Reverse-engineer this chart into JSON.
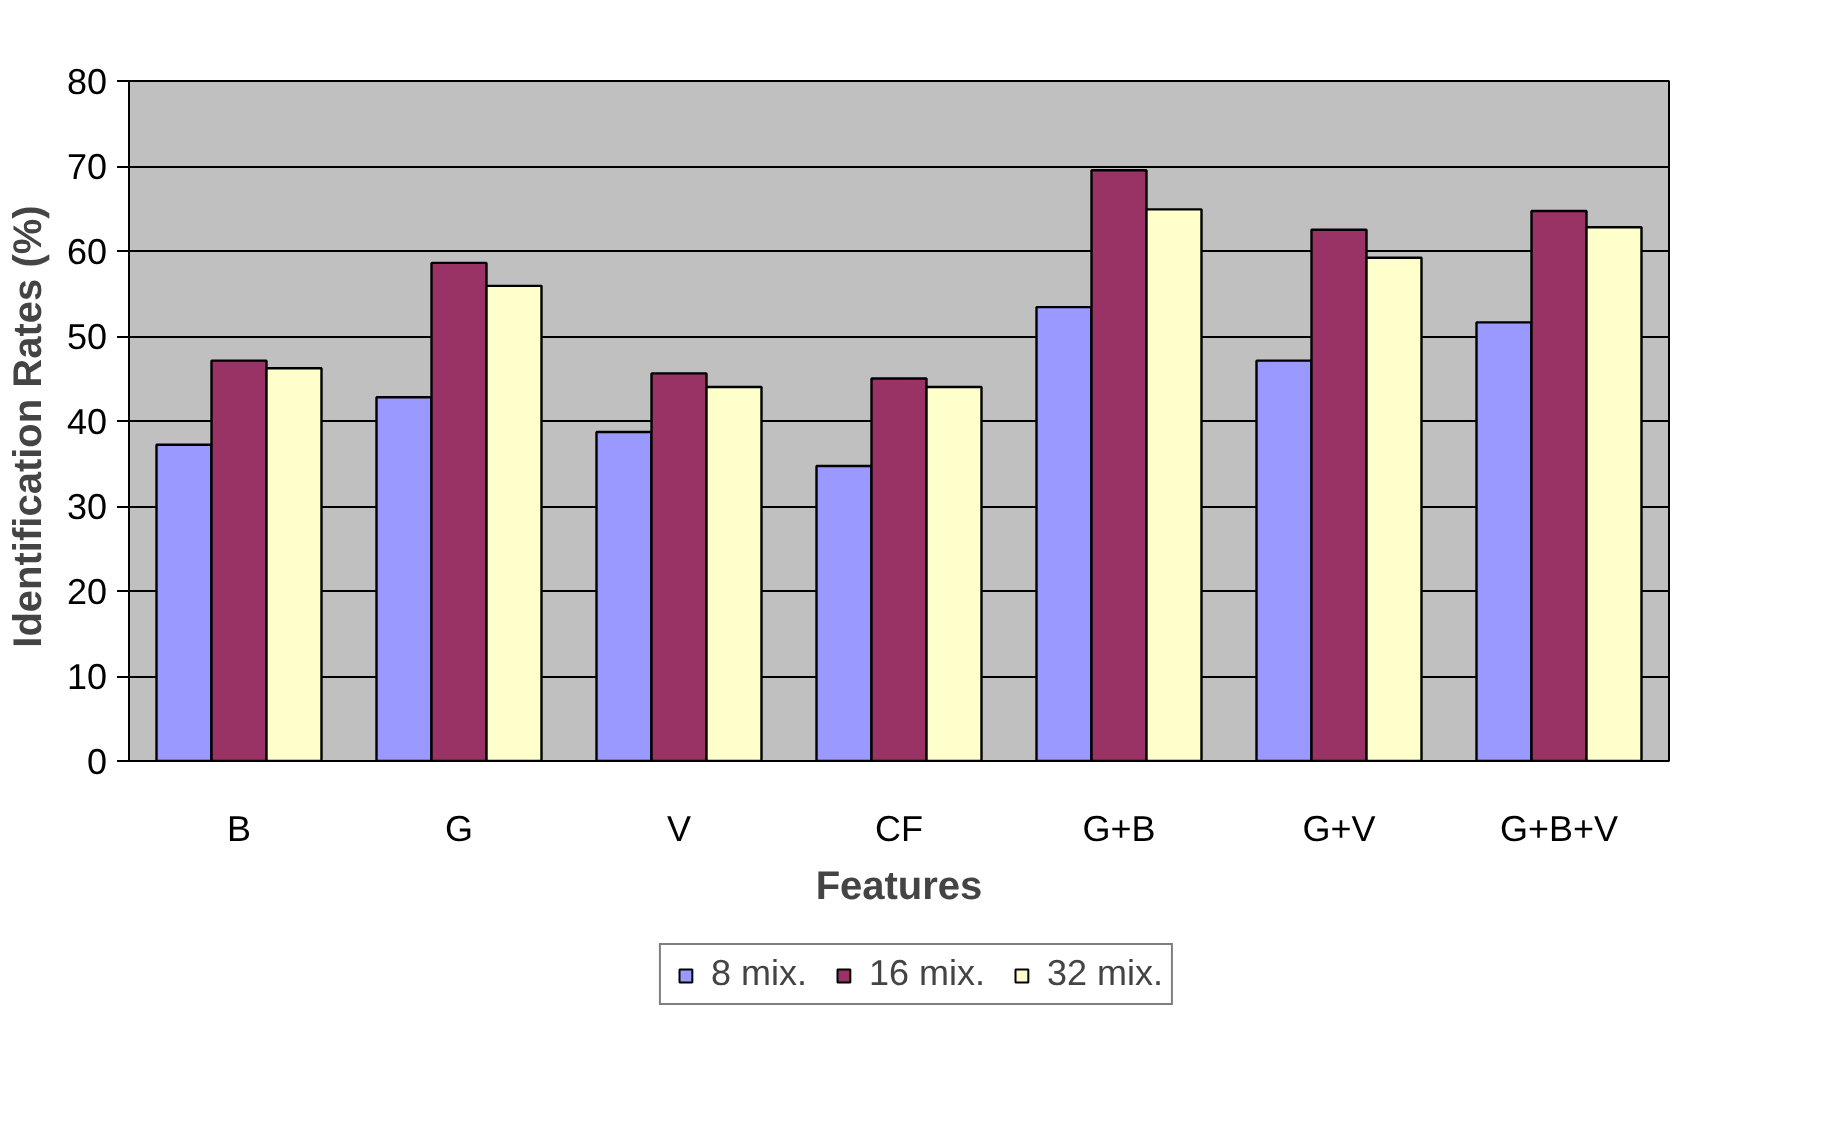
{
  "chart_data": {
    "type": "bar",
    "xlabel": "Features",
    "ylabel": "Identification Rates  (%)",
    "categories": [
      "B",
      "G",
      "V",
      "CF",
      "G+B",
      "G+V",
      "G+B+V"
    ],
    "series": [
      {
        "name": "8 mix.",
        "color": "#9999ff",
        "values": [
          37.2,
          42.8,
          38.7,
          34.7,
          53.4,
          47.1,
          51.6
        ]
      },
      {
        "name": "16 mix.",
        "color": "#993366",
        "values": [
          47.1,
          58.6,
          45.6,
          45.0,
          69.5,
          62.5,
          64.7
        ]
      },
      {
        "name": "32 mix.",
        "color": "#ffffcc",
        "values": [
          46.2,
          55.9,
          44.0,
          44.0,
          64.9,
          59.2,
          62.8
        ]
      }
    ],
    "ylim": [
      0,
      80
    ],
    "yticks": [
      0,
      10,
      20,
      30,
      40,
      50,
      60,
      70,
      80
    ],
    "grid": "y",
    "legend": "bottom"
  }
}
